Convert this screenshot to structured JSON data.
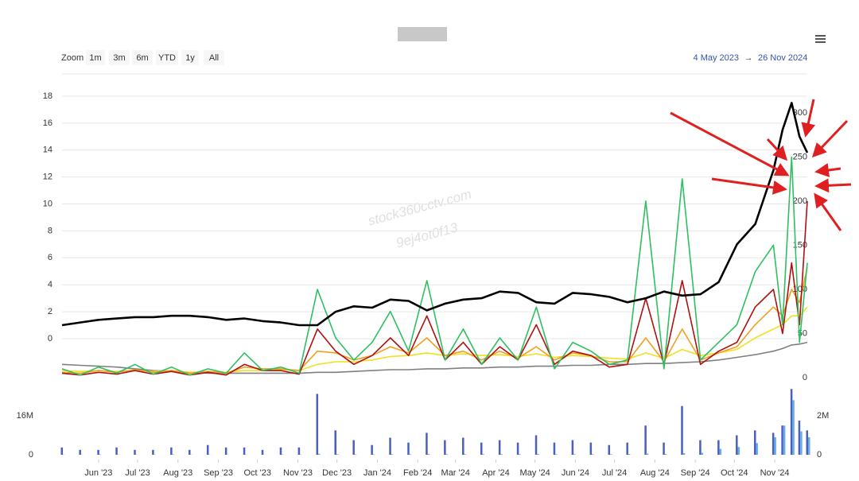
{
  "toolbar": {
    "zoom_label": "Zoom",
    "zoom_buttons": [
      "1m",
      "3m",
      "6m",
      "YTD",
      "1y",
      "All"
    ],
    "range_from": "4 May 2023",
    "range_arrow": "→",
    "range_to": "26 Nov 2024"
  },
  "watermark": [
    "stock360cctv.com",
    "9ej4ot0f13"
  ],
  "chart_data": [
    {
      "type": "line",
      "grid": true,
      "x": [
        "2023-05-04",
        "2023-05-18",
        "2023-06-01",
        "2023-06-15",
        "2023-06-29",
        "2023-07-13",
        "2023-07-27",
        "2023-08-10",
        "2023-08-24",
        "2023-09-07",
        "2023-09-21",
        "2023-10-05",
        "2023-10-19",
        "2023-11-02",
        "2023-11-16",
        "2023-11-30",
        "2023-12-14",
        "2023-12-28",
        "2024-01-11",
        "2024-01-25",
        "2024-02-08",
        "2024-02-22",
        "2024-03-07",
        "2024-03-21",
        "2024-04-04",
        "2024-04-18",
        "2024-05-02",
        "2024-05-16",
        "2024-05-30",
        "2024-06-13",
        "2024-06-27",
        "2024-07-11",
        "2024-07-25",
        "2024-08-08",
        "2024-08-22",
        "2024-09-05",
        "2024-09-19",
        "2024-10-03",
        "2024-10-17",
        "2024-10-31",
        "2024-11-07",
        "2024-11-14",
        "2024-11-20",
        "2024-11-26"
      ],
      "xlim": [
        "2023-05-04",
        "2024-11-26"
      ],
      "ylim": [
        -3.07,
        19.65
      ],
      "yticks": [
        0,
        2,
        4,
        6,
        8,
        10,
        12,
        14,
        16,
        18
      ],
      "y2lim": [
        -2.7,
        344
      ],
      "y2ticks": [
        0,
        50,
        100,
        150,
        200,
        250,
        300
      ],
      "series": [
        {
          "color": "#808080",
          "axis": "y2",
          "values": [
            15,
            14,
            13,
            12,
            10,
            8,
            7,
            6,
            5,
            5,
            5,
            5,
            5,
            5,
            6,
            6,
            7,
            8,
            9,
            9,
            10,
            10,
            11,
            11,
            12,
            12,
            13,
            13,
            14,
            14,
            15,
            15,
            16,
            16,
            17,
            18,
            20,
            23,
            26,
            30,
            33,
            37,
            38,
            40
          ]
        },
        {
          "color": "#f0e020",
          "axis": "y2",
          "values": [
            8,
            7,
            8,
            7,
            8,
            7,
            8,
            6,
            7,
            6,
            8,
            8,
            9,
            8,
            15,
            18,
            18,
            20,
            24,
            25,
            28,
            25,
            27,
            25,
            26,
            24,
            27,
            23,
            25,
            24,
            22,
            21,
            28,
            22,
            32,
            25,
            28,
            32,
            45,
            55,
            60,
            70,
            70,
            80
          ]
        },
        {
          "color": "#f0a020",
          "axis": "y2",
          "values": [
            6,
            5,
            8,
            6,
            9,
            6,
            8,
            5,
            7,
            5,
            12,
            10,
            10,
            8,
            30,
            28,
            20,
            25,
            35,
            28,
            45,
            25,
            30,
            20,
            30,
            22,
            35,
            20,
            28,
            25,
            18,
            18,
            45,
            18,
            55,
            20,
            28,
            35,
            60,
            80,
            70,
            100,
            85,
            125
          ]
        },
        {
          "color": "#b01010",
          "axis": "y2",
          "values": [
            5,
            3,
            6,
            4,
            8,
            4,
            7,
            3,
            6,
            3,
            15,
            8,
            8,
            4,
            55,
            30,
            15,
            25,
            45,
            25,
            70,
            20,
            40,
            15,
            35,
            20,
            60,
            15,
            30,
            25,
            12,
            15,
            90,
            15,
            110,
            15,
            30,
            40,
            80,
            100,
            50,
            130,
            60,
            200
          ]
        },
        {
          "color": "#2ec060",
          "axis": "y2",
          "values": [
            10,
            3,
            12,
            5,
            15,
            4,
            12,
            3,
            10,
            5,
            28,
            8,
            12,
            5,
            100,
            45,
            20,
            40,
            75,
            30,
            110,
            20,
            55,
            15,
            45,
            20,
            80,
            10,
            40,
            30,
            15,
            20,
            200,
            10,
            225,
            20,
            40,
            60,
            120,
            150,
            60,
            250,
            40,
            130
          ]
        },
        {
          "color": "#000000",
          "values": [
            1.0,
            1.2,
            1.4,
            1.5,
            1.6,
            1.6,
            1.7,
            1.7,
            1.6,
            1.4,
            1.5,
            1.3,
            1.2,
            1.0,
            1.0,
            2.0,
            2.4,
            2.3,
            2.9,
            2.8,
            2.1,
            2.6,
            2.9,
            3.0,
            3.5,
            3.4,
            2.7,
            2.6,
            3.4,
            3.3,
            3.1,
            2.7,
            3.0,
            3.5,
            3.2,
            3.3,
            4.2,
            7.0,
            8.5,
            12.5,
            15.5,
            17.5,
            15.0,
            13.8
          ]
        }
      ]
    },
    {
      "type": "bar",
      "grid": false,
      "x": [
        "2023-05-04",
        "2023-05-18",
        "2023-06-01",
        "2023-06-15",
        "2023-06-29",
        "2023-07-13",
        "2023-07-27",
        "2023-08-10",
        "2023-08-24",
        "2023-09-07",
        "2023-09-21",
        "2023-10-05",
        "2023-10-19",
        "2023-11-02",
        "2023-11-16",
        "2023-11-30",
        "2023-12-14",
        "2023-12-28",
        "2024-01-11",
        "2024-01-25",
        "2024-02-08",
        "2024-02-22",
        "2024-03-07",
        "2024-03-21",
        "2024-04-04",
        "2024-04-18",
        "2024-05-02",
        "2024-05-16",
        "2024-05-30",
        "2024-06-13",
        "2024-06-27",
        "2024-07-11",
        "2024-07-25",
        "2024-08-08",
        "2024-08-22",
        "2024-09-05",
        "2024-09-19",
        "2024-10-03",
        "2024-10-17",
        "2024-10-31",
        "2024-11-07",
        "2024-11-14",
        "2024-11-20",
        "2024-11-26"
      ],
      "xlim": [
        "2023-05-04",
        "2024-11-26"
      ],
      "xticks": [
        {
          "value": "2023-06-01",
          "label": "Jun '23"
        },
        {
          "value": "2023-07-01",
          "label": "Jul '23"
        },
        {
          "value": "2023-08-01",
          "label": "Aug '23"
        },
        {
          "value": "2023-09-01",
          "label": "Sep '23"
        },
        {
          "value": "2023-10-01",
          "label": "Oct '23"
        },
        {
          "value": "2023-11-01",
          "label": "Nov '23"
        },
        {
          "value": "2023-12-01",
          "label": "Dec '23"
        },
        {
          "value": "2024-01-01",
          "label": "Jan '24"
        },
        {
          "value": "2024-02-01",
          "label": "Feb '24"
        },
        {
          "value": "2024-03-01",
          "label": "Mar '24"
        },
        {
          "value": "2024-04-01",
          "label": "Apr '24"
        },
        {
          "value": "2024-05-01",
          "label": "May '24"
        },
        {
          "value": "2024-06-01",
          "label": "Jun '24"
        },
        {
          "value": "2024-07-01",
          "label": "Jul '24"
        },
        {
          "value": "2024-08-01",
          "label": "Aug '24"
        },
        {
          "value": "2024-09-01",
          "label": "Sep '24"
        },
        {
          "value": "2024-10-01",
          "label": "Oct '24"
        },
        {
          "value": "2024-11-01",
          "label": "Nov '24"
        }
      ],
      "ylim": [
        -1960000,
        28400000
      ],
      "yticks": [
        0,
        {
          "value": 16000000,
          "label": "16M"
        }
      ],
      "y2lim": [
        -245000,
        3550000
      ],
      "y2ticks": [
        0,
        {
          "value": 2000000,
          "label": "2M"
        }
      ],
      "series": [
        {
          "color": "#4a5fc0",
          "values": [
            3000000,
            2000000,
            2000000,
            3000000,
            2000000,
            2000000,
            3000000,
            2000000,
            4000000,
            3000000,
            3000000,
            2000000,
            3000000,
            3000000,
            25000000,
            10000000,
            6000000,
            4000000,
            7000000,
            5000000,
            9000000,
            6000000,
            7000000,
            5000000,
            6000000,
            5000000,
            8000000,
            5000000,
            6000000,
            5000000,
            4000000,
            5000000,
            12000000,
            5000000,
            20000000,
            6000000,
            6000000,
            8000000,
            10000000,
            9000000,
            12000000,
            27000000,
            14000000,
            10000000
          ]
        },
        {
          "color": "#6aaee8",
          "axis": "y2",
          "values": [
            10000,
            10000,
            20000,
            10000,
            10000,
            10000,
            20000,
            10000,
            10000,
            10000,
            10000,
            10000,
            20000,
            10000,
            50000,
            30000,
            20000,
            20000,
            30000,
            30000,
            40000,
            30000,
            30000,
            30000,
            30000,
            30000,
            40000,
            30000,
            30000,
            30000,
            30000,
            40000,
            60000,
            40000,
            80000,
            100000,
            300000,
            400000,
            600000,
            900000,
            1500000,
            2800000,
            1200000,
            900000
          ]
        }
      ]
    }
  ]
}
